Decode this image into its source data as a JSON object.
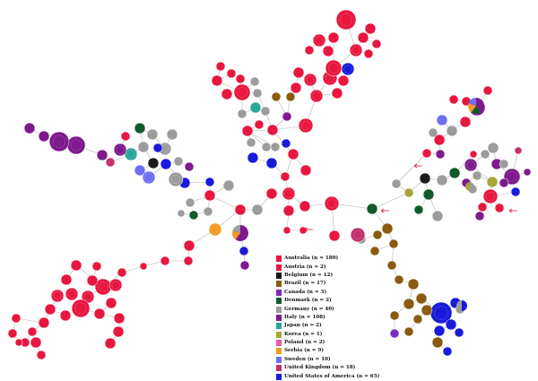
{
  "legend": {
    "entries": [
      {
        "label": "Australia (n = 180)",
        "color": "#e8173f"
      },
      {
        "label": "Austria (n = 2)",
        "color": "#e8173f"
      },
      {
        "label": "Belgium (n = 12)",
        "color": "#1b1b1b"
      },
      {
        "label": "Brazil (n = 17)",
        "color": "#8a5a10"
      },
      {
        "label": "Canada (n = 3)",
        "color": "#7a2ec0"
      },
      {
        "label": "Denmark (n = 2)",
        "color": "#125a2a"
      },
      {
        "label": "Germany (n = 40)",
        "color": "#9c9c9c"
      },
      {
        "label": "Italy (n = 108)",
        "color": "#7d1a8c"
      },
      {
        "label": "Japan (n = 2)",
        "color": "#2aa59a"
      },
      {
        "label": "Korea (n = 1)",
        "color": "#a6a63a"
      },
      {
        "label": "Poland (n = 2)",
        "color": "#e85aa0"
      },
      {
        "label": "Serbia (n = 9)",
        "color": "#f39a1f"
      },
      {
        "label": "Sweden (n = 10)",
        "color": "#6e6ef0"
      },
      {
        "label": "United Kingdom (n = 18)",
        "color": "#c4306b"
      },
      {
        "label": "United States of America (n = 65)",
        "color": "#1a1adc"
      }
    ]
  },
  "colors": {
    "australia": "#e8173f",
    "belgium": "#1b1b1b",
    "brazil": "#8a5a10",
    "canada": "#7a2ec0",
    "denmark": "#125a2a",
    "germany": "#9c9c9c",
    "italy": "#7d1a8c",
    "japan": "#2aa59a",
    "korea": "#a6a63a",
    "poland": "#e85aa0",
    "serbia": "#f39a1f",
    "sweden": "#6e6ef0",
    "uk": "#c4306b",
    "usa": "#1a1adc",
    "edge": "#b5b5b5",
    "arrow": "#d0283c"
  }
}
